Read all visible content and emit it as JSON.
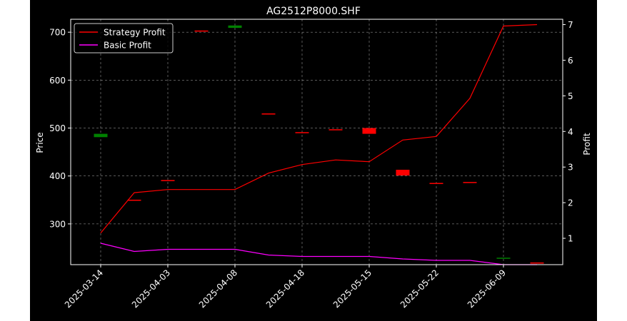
{
  "chart_data": {
    "type": "candlestick_with_lines",
    "title": "AG2512P8000.SHF",
    "xlabel": "",
    "ylabel_left": "Price",
    "ylabel_right": "Profit",
    "ylim_left": [
      215,
      727
    ],
    "ylim_right": [
      0.26,
      7.15
    ],
    "left_ticks": [
      300,
      400,
      500,
      600,
      700
    ],
    "right_ticks": [
      1,
      2,
      3,
      4,
      5,
      6,
      7
    ],
    "grid": true,
    "legend_position": "top-left",
    "x_tick_labels": [
      "2025-03-14",
      "2025-04-03",
      "2025-04-08",
      "2025-04-18",
      "2025-05-15",
      "2025-05-22",
      "2025-06-09"
    ],
    "x_tick_index": [
      0,
      2,
      4,
      6,
      8,
      10,
      12
    ],
    "candles": [
      {
        "i": 0,
        "open": 481,
        "close": 488,
        "color": "#008000"
      },
      {
        "i": 1,
        "open": 349.5,
        "close": 350.5,
        "color": "#ff0000"
      },
      {
        "i": 2,
        "open": 391.5,
        "close": 390.5,
        "color": "#ff0000"
      },
      {
        "i": 3,
        "open": 703.5,
        "close": 702.5,
        "color": "#ff0000"
      },
      {
        "i": 4,
        "open": 709,
        "close": 714,
        "color": "#008000"
      },
      {
        "i": 5,
        "open": 530.5,
        "close": 529.5,
        "color": "#ff0000"
      },
      {
        "i": 6,
        "open": 491.5,
        "close": 490.5,
        "color": "#ff0000"
      },
      {
        "i": 7,
        "open": 497.5,
        "close": 496.5,
        "color": "#ff0000"
      },
      {
        "i": 8,
        "open": 500,
        "close": 488,
        "color": "#ff0000"
      },
      {
        "i": 9,
        "open": 413,
        "close": 401,
        "color": "#ff0000"
      },
      {
        "i": 10,
        "open": 385.5,
        "close": 384.5,
        "color": "#ff0000"
      },
      {
        "i": 11,
        "open": 387.5,
        "close": 386.5,
        "color": "#ff0000"
      },
      {
        "i": 12,
        "open": 228.5,
        "close": 229.5,
        "color": "#008000"
      },
      {
        "i": 13,
        "open": 219.5,
        "close": 218.5,
        "color": "#ff0000"
      }
    ],
    "series": [
      {
        "name": "Strategy Profit",
        "color": "#ff0000",
        "x": [
          0,
          1,
          2,
          3,
          4,
          5,
          6,
          7,
          8,
          9,
          10,
          11,
          12,
          13
        ],
        "values": [
          1.15,
          2.28,
          2.37,
          2.37,
          2.37,
          2.83,
          3.07,
          3.2,
          3.15,
          3.76,
          3.86,
          4.93,
          6.96,
          7.0
        ]
      },
      {
        "name": "Basic Profit",
        "color": "#ff00ff",
        "x": [
          0,
          1,
          2,
          3,
          4,
          5,
          6,
          7,
          8,
          9,
          10,
          11,
          12,
          13
        ],
        "values": [
          0.86,
          0.63,
          0.69,
          0.69,
          0.69,
          0.53,
          0.49,
          0.49,
          0.49,
          0.42,
          0.38,
          0.38,
          0.26,
          0.26
        ]
      }
    ]
  }
}
